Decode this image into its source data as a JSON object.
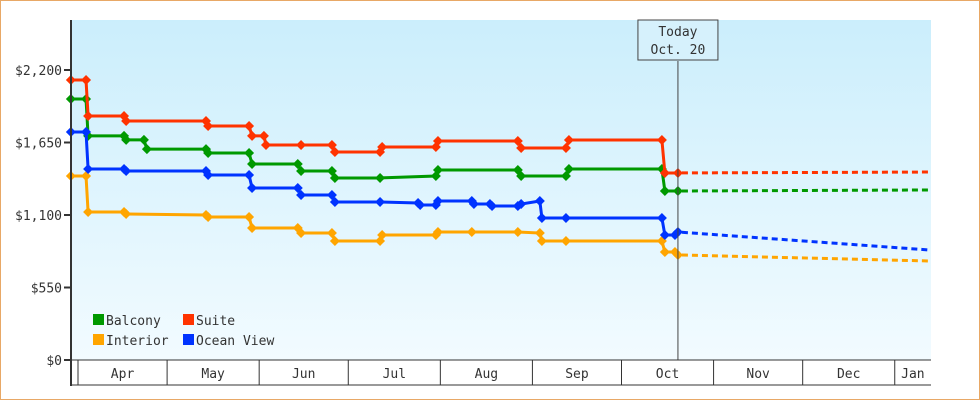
{
  "chart_data": {
    "type": "line",
    "title": "",
    "xlabel": "",
    "ylabel": "",
    "x_unit": "days since Apr 1",
    "xlim": [
      -2.5,
      287
    ],
    "ylim": [
      0,
      2600
    ],
    "y_ticks": [
      0,
      550,
      1100,
      1650,
      2200
    ],
    "y_tick_labels": [
      "$0",
      "$550",
      "$1,100",
      "$1,650",
      "$2,200"
    ],
    "months": [
      {
        "label": "Apr",
        "start": 0
      },
      {
        "label": "May",
        "start": 30
      },
      {
        "label": "Jun",
        "start": 61
      },
      {
        "label": "Jul",
        "start": 91
      },
      {
        "label": "Aug",
        "start": 122
      },
      {
        "label": "Sep",
        "start": 153
      },
      {
        "label": "Oct",
        "start": 183
      },
      {
        "label": "Nov",
        "start": 214
      },
      {
        "label": "Dec",
        "start": 244
      },
      {
        "label": "Jan",
        "start": 275
      }
    ],
    "today": {
      "day": 202,
      "label_line1": "Today",
      "label_line2": "Oct. 20"
    },
    "legend_position": "bottom-left",
    "series": [
      {
        "name": "Balcony",
        "color": "#009900",
        "points": [
          [
            -2.4,
            1980
          ],
          [
            2.7,
            1980
          ],
          [
            3.4,
            1700
          ],
          [
            15.5,
            1700
          ],
          [
            16.2,
            1670
          ],
          [
            22.2,
            1670
          ],
          [
            23.2,
            1600
          ],
          [
            43.1,
            1600
          ],
          [
            43.8,
            1570
          ],
          [
            57.6,
            1570
          ],
          [
            58.6,
            1487
          ],
          [
            74,
            1487
          ],
          [
            75.1,
            1434
          ],
          [
            85.5,
            1434
          ],
          [
            86.5,
            1381
          ],
          [
            101.7,
            1381
          ],
          [
            120.5,
            1396
          ],
          [
            121.2,
            1441
          ],
          [
            148.1,
            1441
          ],
          [
            149.2,
            1396
          ],
          [
            164.3,
            1396
          ],
          [
            165.3,
            1449
          ],
          [
            196.6,
            1449
          ],
          [
            197.6,
            1282
          ],
          [
            202,
            1282
          ]
        ],
        "forecast": [
          [
            202,
            1282
          ],
          [
            287,
            1290
          ]
        ]
      },
      {
        "name": "Suite",
        "color": "#ff3300",
        "points": [
          [
            -2.4,
            2124
          ],
          [
            2.7,
            2124
          ],
          [
            3.4,
            1851
          ],
          [
            15.5,
            1851
          ],
          [
            16.2,
            1813
          ],
          [
            43.1,
            1813
          ],
          [
            43.8,
            1775
          ],
          [
            57.6,
            1775
          ],
          [
            58.6,
            1700
          ],
          [
            62.6,
            1700
          ],
          [
            63.3,
            1631
          ],
          [
            75.1,
            1631
          ],
          [
            85.5,
            1631
          ],
          [
            86.5,
            1578
          ],
          [
            101.7,
            1578
          ],
          [
            102.4,
            1616
          ],
          [
            120.5,
            1616
          ],
          [
            121.2,
            1661
          ],
          [
            148.1,
            1661
          ],
          [
            149.2,
            1608
          ],
          [
            164.3,
            1608
          ],
          [
            165.3,
            1669
          ],
          [
            196.6,
            1669
          ],
          [
            197.6,
            1419
          ],
          [
            202,
            1419
          ]
        ],
        "forecast": [
          [
            202,
            1419
          ],
          [
            287,
            1426
          ]
        ]
      },
      {
        "name": "Interior",
        "color": "#ffa500",
        "points": [
          [
            -2.4,
            1396
          ],
          [
            2.7,
            1396
          ],
          [
            3.4,
            1123
          ],
          [
            15.5,
            1123
          ],
          [
            16.2,
            1108
          ],
          [
            43.1,
            1100
          ],
          [
            43.8,
            1085
          ],
          [
            57.6,
            1085
          ],
          [
            58.6,
            1001
          ],
          [
            74,
            1001
          ],
          [
            75.1,
            963
          ],
          [
            85.5,
            963
          ],
          [
            86.5,
            903
          ],
          [
            101.7,
            903
          ],
          [
            102.4,
            948
          ],
          [
            120.5,
            948
          ],
          [
            121.2,
            971
          ],
          [
            132.6,
            971
          ],
          [
            148.1,
            971
          ],
          [
            155.5,
            963
          ],
          [
            156.2,
            903
          ],
          [
            164.3,
            903
          ],
          [
            196.6,
            903
          ],
          [
            197.6,
            819
          ],
          [
            201,
            819
          ],
          [
            202,
            797
          ]
        ],
        "forecast": [
          [
            202,
            797
          ],
          [
            287,
            751
          ]
        ]
      },
      {
        "name": "Ocean View",
        "color": "#0033ff",
        "points": [
          [
            -2.4,
            1730
          ],
          [
            2.7,
            1730
          ],
          [
            3.4,
            1449
          ],
          [
            15.5,
            1449
          ],
          [
            16.2,
            1434
          ],
          [
            43.1,
            1434
          ],
          [
            43.8,
            1403
          ],
          [
            57.6,
            1403
          ],
          [
            58.6,
            1305
          ],
          [
            74,
            1305
          ],
          [
            75.1,
            1252
          ],
          [
            85.5,
            1252
          ],
          [
            86.5,
            1199
          ],
          [
            101.7,
            1199
          ],
          [
            114.5,
            1191
          ],
          [
            115.2,
            1176
          ],
          [
            120.5,
            1176
          ],
          [
            121.2,
            1206
          ],
          [
            132.6,
            1206
          ],
          [
            133.3,
            1183
          ],
          [
            138.7,
            1183
          ],
          [
            139.4,
            1168
          ],
          [
            148.1,
            1168
          ],
          [
            149.2,
            1183
          ],
          [
            155.5,
            1206
          ],
          [
            156.2,
            1077
          ],
          [
            164.3,
            1077
          ],
          [
            196.6,
            1077
          ],
          [
            197.6,
            948
          ],
          [
            201,
            948
          ],
          [
            202,
            971
          ]
        ],
        "forecast": [
          [
            202,
            971
          ],
          [
            287,
            834
          ]
        ]
      }
    ]
  }
}
